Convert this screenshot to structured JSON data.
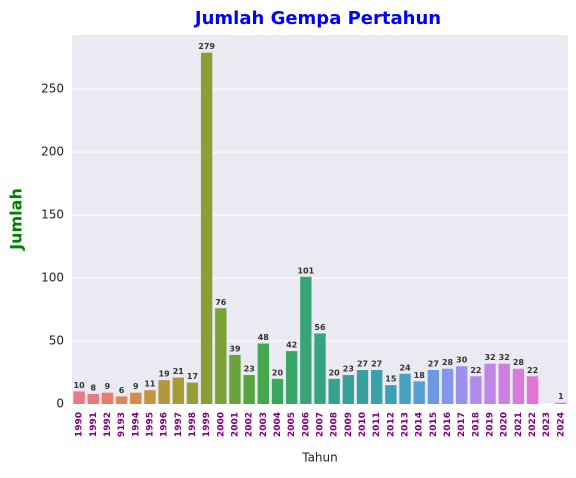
{
  "chart_data": {
    "type": "bar",
    "title": "Jumlah Gempa Pertahun",
    "xlabel": "Tahun",
    "ylabel": "Jumlah",
    "categories": [
      "1990",
      "1991",
      "1992",
      "9193",
      "1994",
      "1995",
      "1996",
      "1997",
      "1998",
      "1999",
      "2000",
      "2001",
      "2002",
      "2003",
      "2004",
      "2005",
      "2006",
      "2007",
      "2008",
      "2009",
      "2010",
      "2011",
      "2012",
      "2013",
      "2014",
      "2015",
      "2016",
      "2017",
      "2018",
      "2019",
      "2020",
      "2021",
      "2022",
      "2023",
      "2024"
    ],
    "values": [
      10,
      8,
      9,
      6,
      9,
      11,
      19,
      21,
      17,
      279,
      76,
      39,
      23,
      48,
      20,
      42,
      101,
      56,
      20,
      23,
      27,
      27,
      15,
      24,
      18,
      27,
      28,
      30,
      22,
      32,
      32,
      28,
      22,
      null,
      1
    ],
    "colors": [
      "#e9788b",
      "#e87b7a",
      "#e77f68",
      "#de8657",
      "#d28d4c",
      "#c49344",
      "#b4973c",
      "#a69a39",
      "#979d37",
      "#899f36",
      "#7aa136",
      "#69a33a",
      "#55a541",
      "#44a64e",
      "#3ea65c",
      "#3aa569",
      "#39a476",
      "#38a381",
      "#37a28b",
      "#37a195",
      "#38a19f",
      "#3aa1aa",
      "#3da1b5",
      "#45a0c2",
      "#569ed3",
      "#6b9ae2",
      "#8596ea",
      "#9c91ec",
      "#ae8ceb",
      "#bf86e8",
      "#cd80e3",
      "#d97bdc",
      "#e176d2",
      "#e577c3",
      "#e879b2"
    ],
    "ylim": [
      0,
      293
    ],
    "yticks": [
      0,
      50,
      100,
      150,
      200,
      250
    ],
    "grid": true
  }
}
